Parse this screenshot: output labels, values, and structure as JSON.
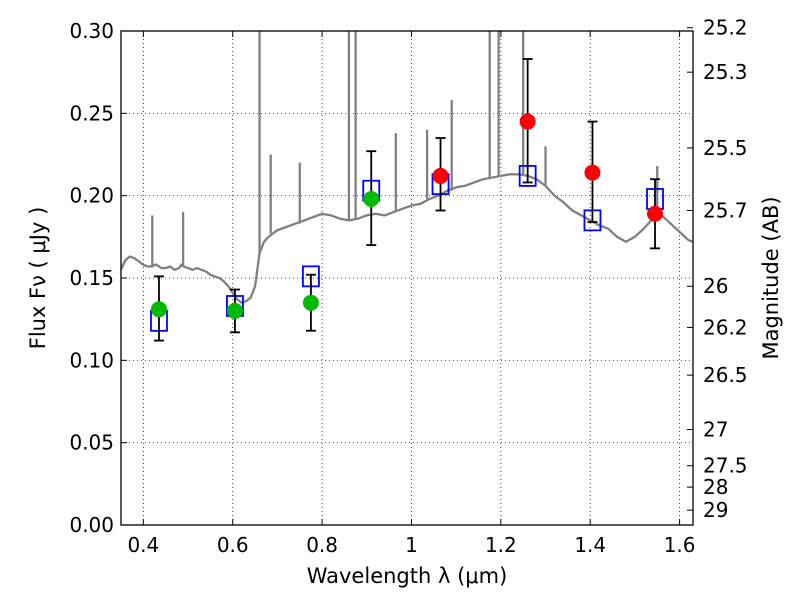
{
  "chart_data": {
    "type": "scatter",
    "xlabel": "Wavelength  λ (μm)",
    "ylabel": "Flux  Fν  ( μJy )",
    "y2label": "Magnitude (AB)",
    "xlim": [
      0.35,
      1.63
    ],
    "ylim": [
      0.0,
      0.3
    ],
    "grid": true,
    "x_ticks": [
      0.4,
      0.6,
      0.8,
      1.0,
      1.2,
      1.4,
      1.6
    ],
    "x_tick_labels": [
      "0.4",
      "0.6",
      "0.8",
      "1",
      "1.2",
      "1.4",
      "1.6"
    ],
    "y_ticks": [
      0.0,
      0.05,
      0.1,
      0.15,
      0.2,
      0.25,
      0.3
    ],
    "y_tick_labels": [
      "0.00",
      "0.05",
      "0.10",
      "0.15",
      "0.20",
      "0.25",
      "0.30"
    ],
    "magnitude_ticks": [
      {
        "label": "25.2",
        "flux": 0.302
      },
      {
        "label": "25.3",
        "flux": 0.275
      },
      {
        "label": "25.5",
        "flux": 0.229
      },
      {
        "label": "25.7",
        "flux": 0.191
      },
      {
        "label": "26",
        "flux": 0.145
      },
      {
        "label": "26.2",
        "flux": 0.12
      },
      {
        "label": "26.5",
        "flux": 0.091
      },
      {
        "label": "27",
        "flux": 0.058
      },
      {
        "label": "27.5",
        "flux": 0.036
      },
      {
        "label": "28",
        "flux": 0.023
      },
      {
        "label": "29",
        "flux": 0.009
      }
    ],
    "series": [
      {
        "kind": "model",
        "color": "#808080",
        "points": [
          [
            0.35,
            0.155
          ],
          [
            0.36,
            0.161
          ],
          [
            0.37,
            0.163
          ],
          [
            0.38,
            0.162
          ],
          [
            0.39,
            0.16
          ],
          [
            0.4,
            0.158
          ],
          [
            0.41,
            0.157
          ],
          [
            0.42,
            0.157
          ],
          [
            0.425,
            0.158
          ],
          [
            0.43,
            0.158
          ],
          [
            0.435,
            0.157
          ],
          [
            0.44,
            0.156
          ],
          [
            0.45,
            0.156
          ],
          [
            0.46,
            0.157
          ],
          [
            0.47,
            0.155
          ],
          [
            0.48,
            0.156
          ],
          [
            0.485,
            0.158
          ],
          [
            0.49,
            0.157
          ],
          [
            0.5,
            0.156
          ],
          [
            0.51,
            0.155
          ],
          [
            0.52,
            0.156
          ],
          [
            0.53,
            0.155
          ],
          [
            0.54,
            0.154
          ],
          [
            0.55,
            0.152
          ],
          [
            0.56,
            0.151
          ],
          [
            0.57,
            0.15
          ],
          [
            0.58,
            0.148
          ],
          [
            0.59,
            0.145
          ],
          [
            0.6,
            0.141
          ],
          [
            0.61,
            0.137
          ],
          [
            0.62,
            0.135
          ],
          [
            0.63,
            0.136
          ],
          [
            0.64,
            0.138
          ],
          [
            0.65,
            0.145
          ],
          [
            0.655,
            0.155
          ],
          [
            0.66,
            0.165
          ],
          [
            0.67,
            0.172
          ],
          [
            0.68,
            0.175
          ],
          [
            0.69,
            0.177
          ],
          [
            0.7,
            0.179
          ],
          [
            0.72,
            0.181
          ],
          [
            0.74,
            0.183
          ],
          [
            0.76,
            0.185
          ],
          [
            0.78,
            0.187
          ],
          [
            0.8,
            0.189
          ],
          [
            0.82,
            0.188
          ],
          [
            0.84,
            0.186
          ],
          [
            0.86,
            0.185
          ],
          [
            0.88,
            0.186
          ],
          [
            0.9,
            0.188
          ],
          [
            0.92,
            0.189
          ],
          [
            0.94,
            0.188
          ],
          [
            0.96,
            0.19
          ],
          [
            0.98,
            0.192
          ],
          [
            1.0,
            0.194
          ],
          [
            1.02,
            0.195
          ],
          [
            1.04,
            0.198
          ],
          [
            1.06,
            0.2
          ],
          [
            1.08,
            0.203
          ],
          [
            1.1,
            0.205
          ],
          [
            1.12,
            0.206
          ],
          [
            1.14,
            0.208
          ],
          [
            1.16,
            0.21
          ],
          [
            1.18,
            0.211
          ],
          [
            1.2,
            0.212
          ],
          [
            1.22,
            0.213
          ],
          [
            1.24,
            0.213
          ],
          [
            1.26,
            0.212
          ],
          [
            1.28,
            0.21
          ],
          [
            1.3,
            0.206
          ],
          [
            1.32,
            0.2
          ],
          [
            1.34,
            0.196
          ],
          [
            1.36,
            0.191
          ],
          [
            1.38,
            0.188
          ],
          [
            1.4,
            0.185
          ],
          [
            1.42,
            0.182
          ],
          [
            1.44,
            0.18
          ],
          [
            1.46,
            0.175
          ],
          [
            1.48,
            0.172
          ],
          [
            1.5,
            0.175
          ],
          [
            1.52,
            0.18
          ],
          [
            1.54,
            0.186
          ],
          [
            1.56,
            0.188
          ],
          [
            1.58,
            0.183
          ],
          [
            1.6,
            0.178
          ],
          [
            1.62,
            0.173
          ],
          [
            1.63,
            0.172
          ]
        ],
        "lines": [
          [
            0.42,
            0.188
          ],
          [
            0.489,
            0.19
          ],
          [
            0.66,
            0.34
          ],
          [
            0.685,
            0.225
          ],
          [
            0.75,
            0.22
          ],
          [
            0.86,
            0.4
          ],
          [
            0.875,
            0.35
          ],
          [
            0.965,
            0.238
          ],
          [
            1.035,
            0.24
          ],
          [
            1.09,
            0.258
          ],
          [
            1.175,
            0.35
          ],
          [
            1.195,
            0.33
          ],
          [
            1.25,
            0.33
          ],
          [
            1.3,
            0.23
          ],
          [
            1.55,
            0.218
          ]
        ]
      },
      {
        "kind": "model_bands",
        "marker": "open-square",
        "color": "#0000ff",
        "x": [
          0.435,
          0.605,
          0.775,
          0.91,
          1.065,
          1.26,
          1.405,
          1.545
        ],
        "values": [
          0.124,
          0.133,
          0.151,
          0.203,
          0.207,
          0.212,
          0.185,
          0.198
        ]
      },
      {
        "kind": "observed",
        "marker": "filled-circle",
        "color": "#00bb00",
        "x": [
          0.435,
          0.605,
          0.775,
          0.91
        ],
        "values": [
          0.131,
          0.13,
          0.135,
          0.198
        ],
        "err_low": [
          0.112,
          0.117,
          0.118,
          0.17
        ],
        "err_high": [
          0.151,
          0.143,
          0.152,
          0.227
        ]
      },
      {
        "kind": "observed",
        "marker": "filled-circle",
        "color": "#ff0000",
        "x": [
          1.065,
          1.26,
          1.405,
          1.545
        ],
        "values": [
          0.212,
          0.245,
          0.214,
          0.189
        ],
        "err_low": [
          0.191,
          0.208,
          0.184,
          0.168
        ],
        "err_high": [
          0.235,
          0.283,
          0.245,
          0.21
        ]
      }
    ]
  }
}
